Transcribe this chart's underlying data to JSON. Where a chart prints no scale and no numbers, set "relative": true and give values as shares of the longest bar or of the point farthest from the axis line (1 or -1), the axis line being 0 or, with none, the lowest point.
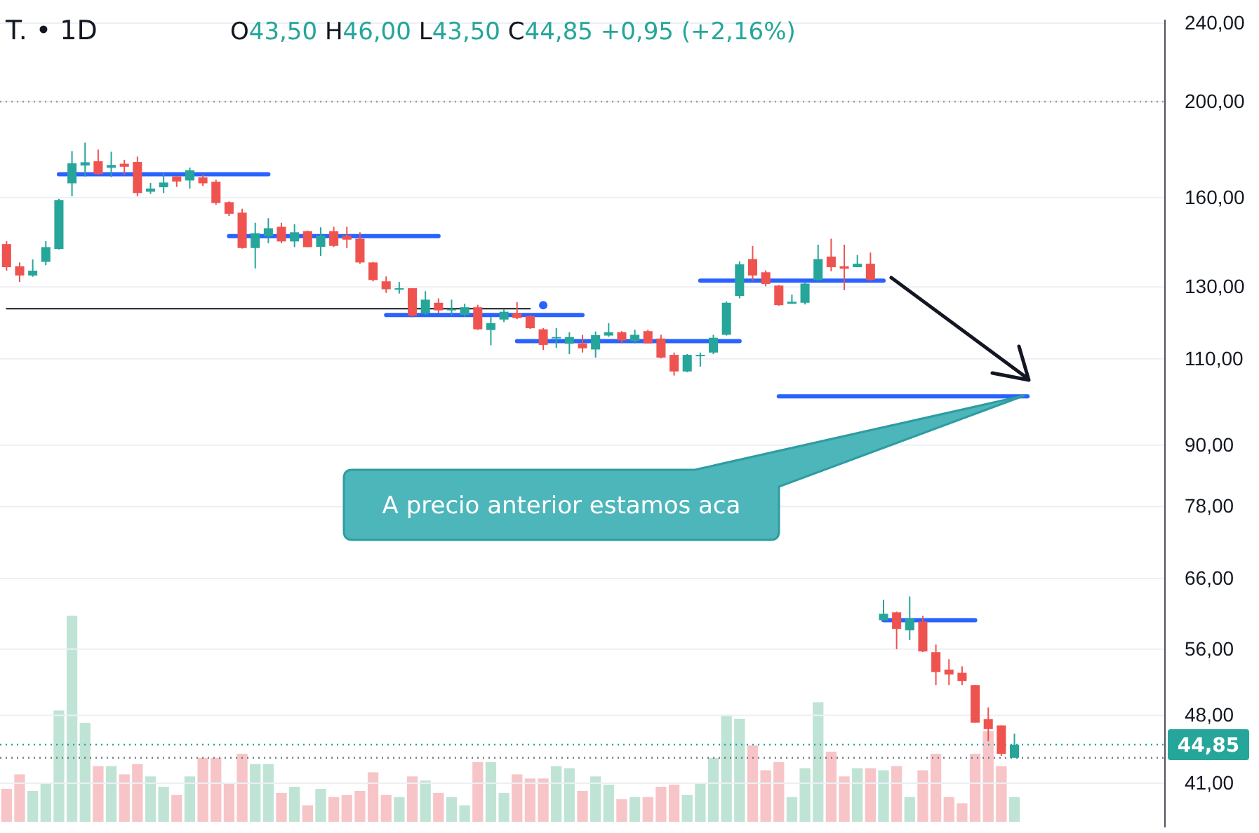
{
  "chart_data": [
    {
      "type": "candlestick",
      "title": "T. • 1D",
      "subtitle": "O43,50 H46,00 L43,50 C44,85 +0,95 (+2,16%)",
      "categories": [
        null,
        null,
        null,
        null,
        null,
        null,
        null,
        null,
        null,
        null,
        null,
        null,
        null,
        null,
        null,
        null,
        null,
        null,
        null,
        null,
        null,
        null,
        null,
        null,
        null,
        null,
        null,
        null,
        null,
        null,
        null,
        null,
        null,
        null,
        null,
        null,
        null,
        null,
        null,
        null,
        null,
        null,
        null,
        null,
        null,
        null,
        null,
        null,
        null,
        null,
        null,
        null,
        null,
        null,
        null,
        null,
        null,
        null,
        null,
        null,
        null,
        null,
        null,
        null,
        null,
        null,
        null,
        null,
        null,
        null,
        null,
        null,
        null,
        null,
        null,
        null,
        null,
        null,
        null,
        null,
        null,
        null,
        null,
        null,
        null,
        null,
        null,
        null,
        null
      ],
      "ohlc": [
        [
          143.6,
          144.6,
          135.0,
          136.1
        ],
        [
          136.4,
          137.6,
          131.5,
          133.5
        ],
        [
          133.5,
          138.6,
          133.1,
          135.0
        ],
        [
          137.8,
          144.6,
          136.7,
          142.6
        ],
        [
          142.0,
          159.5,
          141.8,
          159.1
        ],
        [
          165.4,
          178.3,
          160.5,
          173.3
        ],
        [
          172.4,
          181.8,
          168.0,
          173.7
        ],
        [
          174.1,
          178.9,
          168.7,
          169.0
        ],
        [
          171.5,
          178.0,
          167.8,
          172.6
        ],
        [
          173.1,
          174.7,
          168.7,
          171.9
        ],
        [
          173.8,
          176.0,
          160.5,
          161.7
        ],
        [
          162.2,
          165.5,
          161.4,
          163.4
        ],
        [
          163.9,
          169.3,
          161.7,
          165.7
        ],
        [
          168.1,
          168.1,
          164.0,
          166.1
        ],
        [
          166.5,
          171.6,
          163.4,
          170.5
        ],
        [
          167.7,
          168.8,
          164.4,
          165.4
        ],
        [
          166.0,
          166.8,
          157.4,
          158.0
        ],
        [
          158.3,
          158.6,
          153.3,
          154.1
        ],
        [
          154.5,
          155.9,
          142.1,
          142.3
        ],
        [
          142.3,
          150.9,
          135.7,
          147.3
        ],
        [
          146.2,
          152.5,
          143.9,
          149.0
        ],
        [
          149.5,
          150.9,
          143.9,
          144.5
        ],
        [
          144.5,
          150.4,
          142.6,
          147.6
        ],
        [
          148.0,
          148.2,
          142.6,
          142.6
        ],
        [
          142.7,
          149.3,
          139.7,
          146.5
        ],
        [
          148.0,
          149.5,
          142.6,
          143.0
        ],
        [
          146.5,
          149.5,
          142.3,
          145.1
        ],
        [
          145.4,
          147.6,
          137.2,
          137.6
        ],
        [
          137.6,
          137.8,
          131.7,
          132.1
        ],
        [
          131.7,
          133.2,
          128.2,
          129.3
        ],
        [
          129.4,
          131.5,
          128.0,
          129.6
        ],
        [
          129.6,
          129.6,
          121.1,
          121.6
        ],
        [
          122.2,
          128.7,
          121.8,
          126.2
        ],
        [
          125.3,
          126.6,
          122.2,
          123.1
        ],
        [
          123.1,
          126.2,
          121.6,
          123.5
        ],
        [
          121.8,
          125.0,
          121.3,
          124.0
        ],
        [
          124.0,
          124.7,
          117.6,
          117.8
        ],
        [
          117.6,
          121.3,
          113.5,
          119.5
        ],
        [
          120.5,
          123.4,
          119.8,
          122.7
        ],
        [
          122.3,
          125.5,
          120.6,
          120.9
        ],
        [
          121.5,
          121.7,
          117.9,
          118.1
        ],
        [
          117.8,
          118.1,
          112.3,
          113.6
        ],
        [
          115.5,
          118.1,
          112.8,
          115.7
        ],
        [
          113.9,
          117.0,
          111.2,
          115.7
        ],
        [
          114.0,
          116.3,
          111.6,
          112.7
        ],
        [
          112.4,
          117.2,
          110.3,
          116.2
        ],
        [
          116.1,
          119.5,
          115.8,
          117.0
        ],
        [
          117.0,
          117.3,
          114.0,
          114.8
        ],
        [
          114.6,
          117.7,
          114.0,
          116.3
        ],
        [
          117.3,
          117.7,
          114.0,
          114.0
        ],
        [
          115.3,
          116.3,
          110.1,
          110.3
        ],
        [
          111.0,
          111.6,
          105.8,
          106.8
        ],
        [
          106.8,
          111.2,
          106.6,
          111.0
        ],
        [
          110.8,
          111.6,
          108.0,
          111.0
        ],
        [
          111.6,
          116.3,
          111.2,
          115.5
        ],
        [
          116.3,
          125.7,
          116.1,
          125.3
        ],
        [
          127.3,
          138.0,
          126.6,
          137.0
        ],
        [
          138.7,
          143.0,
          131.9,
          133.5
        ],
        [
          134.5,
          135.1,
          130.2,
          130.9
        ],
        [
          130.4,
          130.6,
          124.4,
          124.6
        ],
        [
          125.0,
          127.7,
          125.0,
          125.6
        ],
        [
          125.3,
          131.5,
          124.8,
          131.0
        ],
        [
          132.1,
          143.4,
          131.9,
          138.7
        ],
        [
          139.5,
          145.4,
          134.8,
          136.1
        ],
        [
          136.4,
          143.4,
          129.0,
          135.6
        ],
        [
          136.1,
          140.0,
          136.1,
          137.2
        ],
        [
          137.2,
          140.8,
          131.9,
          132.1
        ],
        [
          59.9,
          62.8,
          59.9,
          60.8
        ],
        [
          61.0,
          61.1,
          56.0,
          58.7
        ],
        [
          58.5,
          63.3,
          57.2,
          60.1
        ],
        [
          59.7,
          60.5,
          55.6,
          55.7
        ],
        [
          55.6,
          56.6,
          51.5,
          53.1
        ],
        [
          53.4,
          54.7,
          51.5,
          52.8
        ],
        [
          53.0,
          53.8,
          51.5,
          52.0
        ],
        [
          51.5,
          51.5,
          47.2,
          47.2
        ],
        [
          47.6,
          48.9,
          45.2,
          46.5
        ],
        [
          46.9,
          46.9,
          43.7,
          43.9
        ],
        [
          43.5,
          46.0,
          43.5,
          44.85
        ],
        null,
        null,
        null,
        null,
        null,
        null,
        null,
        null,
        null,
        null,
        null
      ],
      "colors": [
        "#ef5350",
        "#ef5350",
        "#26a69a",
        "#26a69a",
        "#26a69a",
        "#26a69a",
        "#26a69a",
        "#ef5350",
        "#26a69a",
        "#ef5350",
        "#ef5350",
        "#26a69a",
        "#26a69a",
        "#ef5350",
        "#26a69a",
        "#ef5350",
        "#ef5350",
        "#ef5350",
        "#ef5350",
        "#26a69a",
        "#26a69a",
        "#ef5350",
        "#26a69a",
        "#ef5350",
        "#26a69a",
        "#ef5350",
        "#ef5350",
        "#ef5350",
        "#ef5350",
        "#ef5350",
        "#26a69a",
        "#ef5350",
        "#26a69a",
        "#ef5350",
        "#26a69a",
        "#26a69a",
        "#ef5350",
        "#26a69a",
        "#26a69a",
        "#ef5350",
        "#ef5350",
        "#ef5350",
        "#26a69a",
        "#26a69a",
        "#ef5350",
        "#26a69a",
        "#26a69a",
        "#ef5350",
        "#26a69a",
        "#ef5350",
        "#ef5350",
        "#ef5350",
        "#26a69a",
        "#26a69a",
        "#26a69a",
        "#26a69a",
        "#26a69a",
        "#ef5350",
        "#ef5350",
        "#ef5350",
        "#26a69a",
        "#26a69a",
        "#26a69a",
        "#ef5350",
        "#ef5350",
        "#26a69a",
        "#ef5350",
        "#26a69a",
        "#ef5350",
        "#26a69a",
        "#ef5350",
        "#ef5350",
        "#ef5350",
        "#ef5350",
        "#ef5350",
        "#ef5350",
        "#ef5350",
        "#26a69a",
        null,
        null,
        null,
        null,
        null,
        null,
        null,
        null,
        null,
        null,
        null
      ],
      "series": [
        {
          "type": "line",
          "color": "#2962ff",
          "values": [
            null,
            null,
            null,
            null,
            168.9,
            168.9,
            168.9,
            168.9,
            168.9,
            168.9,
            168.9,
            168.9,
            168.9,
            168.9,
            168.9,
            168.9,
            168.9,
            168.9,
            168.9,
            168.9,
            168.9,
            null,
            null,
            null,
            null,
            null,
            null,
            null,
            null,
            null,
            null,
            null,
            null,
            null,
            null,
            null,
            null,
            null,
            null,
            null,
            null,
            null,
            null,
            null,
            null,
            null,
            null,
            null,
            null,
            null,
            null,
            null,
            null,
            null,
            null,
            null,
            null,
            null,
            null,
            null,
            null,
            null,
            null,
            null,
            null,
            null,
            null,
            null,
            null,
            null,
            null,
            null,
            null,
            null,
            null,
            null,
            null,
            null,
            null,
            null,
            null,
            null,
            null,
            null,
            null,
            null,
            null,
            null,
            null
          ]
        },
        {
          "type": "line",
          "color": "#2962ff",
          "values": [
            null,
            null,
            null,
            null,
            null,
            null,
            null,
            null,
            null,
            null,
            null,
            null,
            null,
            null,
            null,
            null,
            null,
            146.3,
            146.3,
            146.3,
            146.3,
            146.3,
            146.3,
            146.3,
            146.3,
            146.3,
            146.3,
            146.3,
            146.3,
            146.3,
            146.3,
            146.3,
            146.3,
            146.3,
            null,
            null,
            null,
            null,
            null,
            null,
            null,
            null,
            null,
            null,
            null,
            null,
            null,
            null,
            null,
            null,
            null,
            null,
            null,
            null,
            null,
            null,
            null,
            null,
            null,
            null,
            null,
            null,
            null,
            null,
            null,
            null,
            null,
            null,
            null,
            null,
            null,
            null,
            null,
            null,
            null,
            null,
            null,
            null,
            null,
            null,
            null,
            null,
            null,
            null,
            null,
            null,
            null,
            null,
            null
          ]
        },
        {
          "type": "line",
          "color": "#2962ff",
          "values": [
            null,
            null,
            null,
            null,
            null,
            null,
            null,
            null,
            null,
            null,
            null,
            null,
            null,
            null,
            null,
            null,
            null,
            null,
            null,
            null,
            null,
            null,
            null,
            null,
            null,
            null,
            null,
            null,
            null,
            121.8,
            121.8,
            121.8,
            121.8,
            121.8,
            121.8,
            121.8,
            121.8,
            121.8,
            121.8,
            121.8,
            121.8,
            121.8,
            121.8,
            121.8,
            121.8,
            null,
            null,
            null,
            null,
            null,
            null,
            null,
            null,
            null,
            null,
            null,
            null,
            null,
            null,
            null,
            null,
            null,
            null,
            null,
            null,
            null,
            null,
            null,
            null,
            null,
            null,
            null,
            null,
            null,
            null,
            null,
            null,
            null,
            null,
            null,
            null,
            null,
            null,
            null,
            null,
            null,
            null,
            null,
            null
          ]
        },
        {
          "type": "line",
          "color": "#2962ff",
          "values": [
            null,
            null,
            null,
            null,
            null,
            null,
            null,
            null,
            null,
            null,
            null,
            null,
            null,
            null,
            null,
            null,
            null,
            null,
            null,
            null,
            null,
            null,
            null,
            null,
            null,
            null,
            null,
            null,
            null,
            null,
            null,
            null,
            null,
            null,
            null,
            null,
            null,
            null,
            null,
            114.6,
            114.6,
            114.6,
            114.6,
            114.6,
            114.6,
            114.6,
            114.6,
            114.6,
            114.6,
            114.6,
            114.6,
            114.6,
            114.6,
            114.6,
            114.6,
            114.6,
            114.6,
            null,
            null,
            null,
            null,
            null,
            null,
            null,
            null,
            null,
            null,
            null,
            null,
            null,
            null,
            null,
            null,
            null,
            null,
            null,
            null,
            null,
            null,
            null,
            null,
            null,
            null,
            null,
            null,
            null,
            null,
            null,
            null
          ]
        },
        {
          "type": "line",
          "color": "#2962ff",
          "values": [
            null,
            null,
            null,
            null,
            null,
            null,
            null,
            null,
            null,
            null,
            null,
            null,
            null,
            null,
            null,
            null,
            null,
            null,
            null,
            null,
            null,
            null,
            null,
            null,
            null,
            null,
            null,
            null,
            null,
            null,
            null,
            null,
            null,
            null,
            null,
            null,
            null,
            null,
            null,
            null,
            null,
            null,
            null,
            null,
            null,
            null,
            null,
            null,
            null,
            null,
            null,
            null,
            null,
            131.9,
            131.9,
            131.9,
            131.9,
            131.9,
            131.9,
            131.9,
            131.9,
            131.9,
            131.9,
            131.9,
            131.9,
            131.9,
            131.9,
            131.9,
            null,
            null,
            null,
            null,
            null,
            null,
            null,
            null,
            null,
            null,
            null,
            null,
            null,
            null,
            null,
            null,
            null,
            null,
            null,
            null,
            null
          ]
        },
        {
          "type": "line",
          "color": "#2962ff",
          "values": [
            null,
            null,
            null,
            null,
            null,
            null,
            null,
            null,
            null,
            null,
            null,
            null,
            null,
            null,
            null,
            null,
            null,
            null,
            null,
            null,
            null,
            null,
            null,
            null,
            null,
            null,
            null,
            null,
            null,
            null,
            null,
            null,
            null,
            null,
            null,
            null,
            null,
            null,
            null,
            null,
            null,
            null,
            null,
            null,
            null,
            null,
            null,
            null,
            null,
            null,
            null,
            null,
            null,
            null,
            null,
            null,
            null,
            null,
            null,
            100.8,
            100.8,
            100.8,
            100.8,
            100.8,
            100.8,
            100.8,
            100.8,
            100.8,
            100.8,
            100.8,
            100.8,
            100.8,
            100.8,
            100.8,
            100.8,
            100.8,
            100.8,
            100.8,
            100.8,
            null,
            null,
            null,
            null,
            null,
            null,
            null,
            null,
            null,
            null
          ]
        },
        {
          "type": "line",
          "color": "#2962ff",
          "values": [
            null,
            null,
            null,
            null,
            null,
            null,
            null,
            null,
            null,
            null,
            null,
            null,
            null,
            null,
            null,
            null,
            null,
            null,
            null,
            null,
            null,
            null,
            null,
            null,
            null,
            null,
            null,
            null,
            null,
            null,
            null,
            null,
            null,
            null,
            null,
            null,
            null,
            null,
            null,
            null,
            null,
            null,
            null,
            null,
            null,
            null,
            null,
            null,
            null,
            null,
            null,
            null,
            null,
            null,
            null,
            null,
            null,
            null,
            null,
            null,
            null,
            null,
            null,
            null,
            null,
            null,
            null,
            59.9,
            59.9,
            59.9,
            59.9,
            59.9,
            59.9,
            59.9,
            59.9,
            null,
            null,
            null,
            null,
            null,
            null,
            null,
            null,
            null,
            null,
            null,
            null,
            null,
            null
          ]
        },
        {
          "type": "line",
          "color": "#131722",
          "values": [
            123.6,
            123.6,
            123.6,
            123.6,
            123.6,
            123.6,
            123.6,
            123.6,
            123.6,
            123.6,
            123.6,
            123.6,
            123.6,
            123.6,
            123.6,
            123.6,
            123.6,
            123.6,
            123.6,
            123.6,
            123.6,
            123.6,
            123.6,
            123.6,
            123.6,
            123.6,
            123.6,
            123.6,
            123.6,
            123.6,
            123.6,
            123.6,
            123.6,
            123.6,
            123.6,
            123.6,
            123.6,
            123.6,
            123.6,
            123.6,
            123.6,
            null,
            null,
            null,
            null,
            null,
            null,
            null,
            null,
            null,
            null,
            null,
            null,
            null,
            null,
            null,
            null,
            null,
            null,
            null,
            null,
            null,
            null,
            null,
            null,
            null,
            null,
            null,
            null,
            null,
            null,
            null,
            null,
            null,
            null,
            null,
            null,
            null,
            null,
            null,
            null,
            null,
            null,
            null,
            null,
            null,
            null,
            null,
            null
          ]
        },
        {
          "type": "scatter",
          "color": "#2962ff",
          "marker": "circle",
          "values": [
            null,
            null,
            null,
            null,
            null,
            null,
            null,
            null,
            null,
            null,
            null,
            null,
            null,
            null,
            null,
            null,
            null,
            null,
            null,
            null,
            null,
            null,
            null,
            null,
            null,
            null,
            null,
            null,
            null,
            null,
            null,
            null,
            null,
            null,
            null,
            null,
            null,
            null,
            null,
            null,
            null,
            124.6,
            null,
            null,
            null,
            null,
            null,
            null,
            null,
            null,
            null,
            null,
            null,
            null,
            null,
            null,
            null,
            null,
            null,
            null,
            null,
            null,
            null,
            null,
            null,
            null,
            null,
            null,
            null,
            null,
            null,
            null,
            null,
            null,
            null,
            null,
            null,
            null,
            null,
            null,
            null,
            null,
            null,
            null,
            null,
            null,
            null,
            null,
            null
          ]
        }
      ],
      "ylim": [
        37,
        242
      ],
      "log": true,
      "yticks": [
        {
          "value": 240,
          "label": "240,00"
        },
        {
          "value": 200,
          "label": "200,00"
        },
        {
          "value": 160,
          "label": "160,00"
        },
        {
          "value": 130,
          "label": "130,00"
        },
        {
          "value": 110,
          "label": "110,00"
        },
        {
          "value": 90,
          "label": "90,00"
        },
        {
          "value": 78,
          "label": "78,00"
        },
        {
          "value": 66,
          "label": "66,00"
        },
        {
          "value": 56,
          "label": "56,00"
        },
        {
          "value": 48,
          "label": "48,00"
        },
        {
          "value": 41,
          "label": "41,00"
        }
      ],
      "grid": "y",
      "tick_labels": "y",
      "ref_lines": [
        {
          "axis": "y",
          "value": 200,
          "color": "#9598a1",
          "line_style": "dotted"
        },
        {
          "axis": "y",
          "value": 43.5,
          "color": "#787b86",
          "line_style": "dotted"
        },
        {
          "axis": "y",
          "value": 44.85,
          "label": "44,85",
          "color": "#26a69a",
          "line_style": "dotted"
        }
      ],
      "annotations": [
        "A precio anterior estamos aca"
      ]
    },
    {
      "type": "bar",
      "relative": true,
      "tick_labels": false,
      "categories": [
        null,
        null,
        null,
        null,
        null,
        null,
        null,
        null,
        null,
        null,
        null,
        null,
        null,
        null,
        null,
        null,
        null,
        null,
        null,
        null,
        null,
        null,
        null,
        null,
        null,
        null,
        null,
        null,
        null,
        null,
        null,
        null,
        null,
        null,
        null,
        null,
        null,
        null,
        null,
        null,
        null,
        null,
        null,
        null,
        null,
        null,
        null,
        null,
        null,
        null,
        null,
        null,
        null,
        null,
        null,
        null,
        null,
        null,
        null,
        null,
        null,
        null,
        null,
        null,
        null,
        null,
        null,
        null,
        null,
        null,
        null,
        null,
        null,
        null,
        null,
        null,
        null,
        null,
        null,
        null,
        null,
        null,
        null,
        null,
        null,
        null,
        null,
        null,
        null
      ],
      "values": [
        0.16,
        0.23,
        0.15,
        0.19,
        0.54,
        1,
        0.48,
        0.27,
        0.27,
        0.23,
        0.28,
        0.22,
        0.17,
        0.13,
        0.22,
        0.31,
        0.31,
        0.19,
        0.33,
        0.28,
        0.28,
        0.14,
        0.17,
        0.08,
        0.16,
        0.12,
        0.13,
        0.15,
        0.24,
        0.13,
        0.12,
        0.22,
        0.2,
        0.14,
        0.12,
        0.08,
        0.29,
        0.29,
        0.14,
        0.23,
        0.21,
        0.21,
        0.27,
        0.26,
        0.15,
        0.22,
        0.18,
        0.11,
        0.12,
        0.12,
        0.17,
        0.18,
        0.13,
        0.19,
        0.31,
        0.52,
        0.5,
        0.37,
        0.25,
        0.29,
        0.12,
        0.26,
        0.58,
        0.34,
        0.22,
        0.26,
        0.26,
        0.25,
        0.27,
        0.12,
        0.25,
        0.33,
        0.12,
        0.09,
        0.33,
        0.44,
        0.27,
        0.12,
        null,
        null,
        null,
        null,
        null,
        null,
        null,
        null,
        null,
        null,
        null
      ],
      "colors": [
        "#f7c5c7",
        "#f7c5c7",
        "#bfe4d6",
        "#bfe4d6",
        "#bfe4d6",
        "#bfe4d6",
        "#bfe4d6",
        "#f7c5c7",
        "#bfe4d6",
        "#f7c5c7",
        "#f7c5c7",
        "#bfe4d6",
        "#bfe4d6",
        "#f7c5c7",
        "#bfe4d6",
        "#f7c5c7",
        "#f7c5c7",
        "#f7c5c7",
        "#f7c5c7",
        "#bfe4d6",
        "#bfe4d6",
        "#f7c5c7",
        "#bfe4d6",
        "#f7c5c7",
        "#bfe4d6",
        "#f7c5c7",
        "#f7c5c7",
        "#f7c5c7",
        "#f7c5c7",
        "#f7c5c7",
        "#bfe4d6",
        "#f7c5c7",
        "#bfe4d6",
        "#f7c5c7",
        "#bfe4d6",
        "#bfe4d6",
        "#f7c5c7",
        "#bfe4d6",
        "#bfe4d6",
        "#f7c5c7",
        "#f7c5c7",
        "#f7c5c7",
        "#bfe4d6",
        "#bfe4d6",
        "#f7c5c7",
        "#bfe4d6",
        "#bfe4d6",
        "#f7c5c7",
        "#bfe4d6",
        "#f7c5c7",
        "#f7c5c7",
        "#f7c5c7",
        "#bfe4d6",
        "#bfe4d6",
        "#bfe4d6",
        "#bfe4d6",
        "#bfe4d6",
        "#f7c5c7",
        "#f7c5c7",
        "#f7c5c7",
        "#bfe4d6",
        "#bfe4d6",
        "#bfe4d6",
        "#f7c5c7",
        "#f7c5c7",
        "#bfe4d6",
        "#f7c5c7",
        "#bfe4d6",
        "#f7c5c7",
        "#bfe4d6",
        "#f7c5c7",
        "#f7c5c7",
        "#f7c5c7",
        "#f7c5c7",
        "#f7c5c7",
        "#f7c5c7",
        "#f7c5c7",
        "#bfe4d6",
        null,
        null,
        null,
        null,
        null,
        null,
        null,
        null,
        null,
        null,
        null
      ]
    }
  ]
}
